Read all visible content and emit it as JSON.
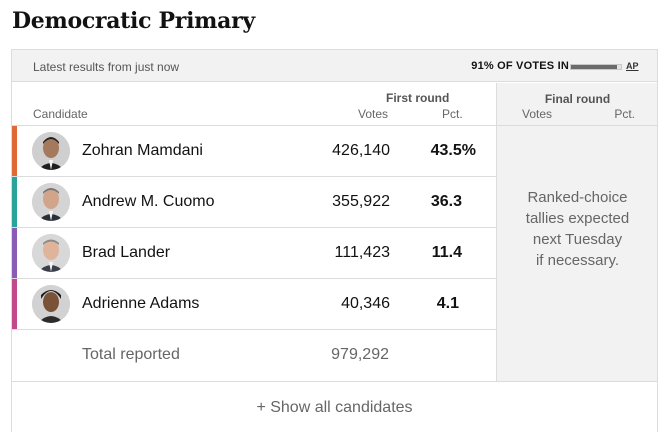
{
  "title": "Democratic Primary",
  "topbar": {
    "latest": "Latest results from just now",
    "votes_in": "91% OF VOTES IN",
    "votes_in_fraction": 0.91,
    "source": "AP"
  },
  "headers": {
    "candidate": "Candidate",
    "first_round": "First round",
    "votes": "Votes",
    "pct": "Pct.",
    "final_round": "Final round",
    "final_votes": "Votes",
    "final_pct": "Pct."
  },
  "final_note": [
    "Ranked-choice",
    "tallies expected",
    "next Tuesday",
    "if necessary."
  ],
  "colors": {
    "stripe_1": "#e06a36",
    "stripe_2": "#2aa39a",
    "stripe_3": "#8a5cb5",
    "stripe_4": "#c24a8a"
  },
  "candidates": [
    {
      "name": "Zohran Mamdani",
      "votes": "426,140",
      "pct": "43.5%",
      "color": "#e06a36"
    },
    {
      "name": "Andrew M. Cuomo",
      "votes": "355,922",
      "pct": "36.3",
      "color": "#2aa39a"
    },
    {
      "name": "Brad Lander",
      "votes": "111,423",
      "pct": "11.4",
      "color": "#8a5cb5"
    },
    {
      "name": "Adrienne Adams",
      "votes": "40,346",
      "pct": "4.1",
      "color": "#c24a8a"
    }
  ],
  "total": {
    "label": "Total reported",
    "votes": "979,292"
  },
  "footer": {
    "show_all": "+ Show all candidates"
  }
}
